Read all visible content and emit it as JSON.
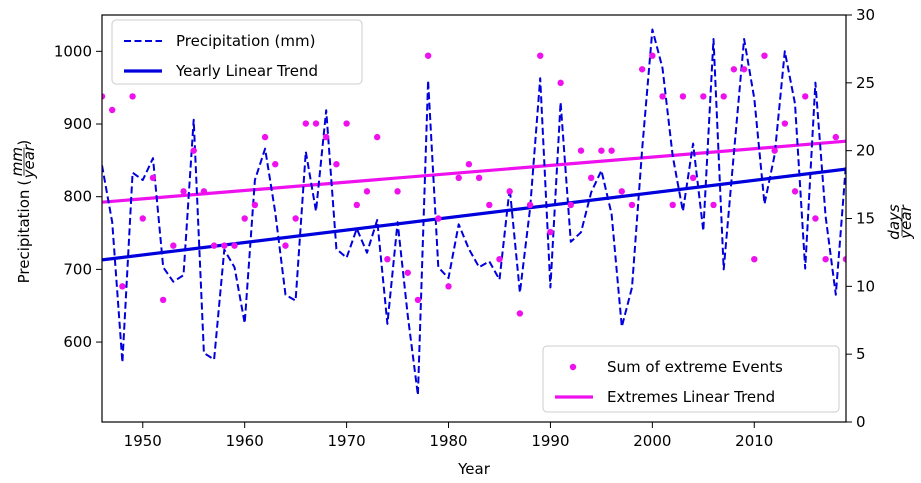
{
  "chart_data": {
    "type": "line",
    "xlabel": "Year",
    "ylabel_left": "Precipitation",
    "ylabel_left_unit": {
      "numerator": "mm",
      "denominator": "year"
    },
    "ylabel_right_unit": {
      "numerator": "days",
      "denominator": "year"
    },
    "xlim": [
      1946,
      2019
    ],
    "ylim_left": [
      490,
      1050
    ],
    "ylim_right": [
      0,
      30
    ],
    "xticks": [
      1950,
      1960,
      1970,
      1980,
      1990,
      2000,
      2010
    ],
    "yticks_left": [
      600,
      700,
      800,
      900,
      1000
    ],
    "yticks_right": [
      0,
      5,
      10,
      15,
      20,
      25,
      30
    ],
    "grid": false,
    "legends": [
      {
        "placement": "upper-left",
        "entries": [
          {
            "label": "Precipitation (mm)",
            "series": "precip"
          },
          {
            "label": "Yearly Linear Trend",
            "series": "precip_trend"
          }
        ]
      },
      {
        "placement": "lower-right",
        "entries": [
          {
            "label": "Sum of extreme Events",
            "series": "extremes"
          },
          {
            "label": "Extremes Linear Trend",
            "series": "extremes_trend"
          }
        ]
      }
    ],
    "colors": {
      "precip": "#0000dd",
      "precip_trend": "#0000dd",
      "extremes": "#ee11ee",
      "extremes_trend": "#ee11ee"
    },
    "series": [
      {
        "id": "precip",
        "name": "Precipitation (mm)",
        "axis": "left",
        "style": "dashed",
        "x": [
          1946,
          1947,
          1948,
          1949,
          1950,
          1951,
          1952,
          1953,
          1954,
          1955,
          1956,
          1957,
          1958,
          1959,
          1960,
          1961,
          1962,
          1963,
          1964,
          1965,
          1966,
          1967,
          1968,
          1969,
          1970,
          1971,
          1972,
          1973,
          1974,
          1975,
          1976,
          1977,
          1978,
          1979,
          1980,
          1981,
          1982,
          1983,
          1984,
          1985,
          1986,
          1987,
          1988,
          1989,
          1990,
          1991,
          1992,
          1993,
          1994,
          1995,
          1996,
          1997,
          1998,
          1999,
          2000,
          2001,
          2002,
          2003,
          2004,
          2005,
          2006,
          2007,
          2008,
          2009,
          2010,
          2011,
          2012,
          2013,
          2014,
          2015,
          2016,
          2017,
          2018,
          2019
        ],
        "y": [
          843,
          765,
          572,
          833,
          823,
          853,
          703,
          683,
          692,
          906,
          585,
          576,
          727,
          703,
          626,
          823,
          866,
          778,
          665,
          657,
          862,
          780,
          919,
          728,
          716,
          756,
          723,
          768,
          625,
          765,
          636,
          527,
          960,
          703,
          688,
          762,
          728,
          703,
          711,
          686,
          812,
          668,
          784,
          963,
          675,
          930,
          738,
          751,
          806,
          836,
          776,
          621,
          675,
          866,
          1030,
          977,
          856,
          780,
          873,
          753,
          1017,
          700,
          860,
          1017,
          935,
          790,
          858,
          1000,
          928,
          701,
          957,
          773,
          665,
          845
        ]
      },
      {
        "id": "precip_trend",
        "name": "Yearly Linear Trend",
        "axis": "left",
        "style": "solid",
        "x": [
          1946,
          2019
        ],
        "y": [
          713,
          838
        ]
      },
      {
        "id": "extremes",
        "name": "Sum of extreme Events",
        "axis": "right",
        "style": "points",
        "x": [
          1946,
          1947,
          1948,
          1949,
          1950,
          1951,
          1952,
          1953,
          1954,
          1955,
          1956,
          1957,
          1958,
          1959,
          1960,
          1961,
          1962,
          1963,
          1964,
          1965,
          1966,
          1967,
          1968,
          1969,
          1970,
          1971,
          1972,
          1973,
          1974,
          1975,
          1976,
          1977,
          1978,
          1979,
          1980,
          1981,
          1982,
          1983,
          1984,
          1985,
          1986,
          1987,
          1988,
          1989,
          1990,
          1991,
          1992,
          1993,
          1994,
          1995,
          1996,
          1997,
          1998,
          1999,
          2000,
          2001,
          2002,
          2003,
          2004,
          2005,
          2006,
          2007,
          2008,
          2009,
          2010,
          2011,
          2012,
          2013,
          2014,
          2015,
          2016,
          2017,
          2018,
          2019
        ],
        "y": [
          24,
          23,
          10,
          24,
          15,
          18,
          9,
          13,
          17,
          20,
          17,
          13,
          13,
          13,
          15,
          16,
          21,
          19,
          13,
          15,
          22,
          22,
          21,
          19,
          22,
          16,
          17,
          21,
          12,
          17,
          11,
          9,
          27,
          15,
          10,
          18,
          19,
          18,
          16,
          12,
          17,
          8,
          16,
          27,
          14,
          25,
          16,
          20,
          18,
          20,
          20,
          17,
          16,
          26,
          27,
          24,
          16,
          24,
          18,
          24,
          16,
          24,
          26,
          26,
          12,
          27,
          20,
          22,
          17,
          24,
          15,
          12,
          21,
          12
        ]
      },
      {
        "id": "extremes_trend",
        "name": "Extremes Linear Trend",
        "axis": "right",
        "style": "solid",
        "x": [
          1946,
          2019
        ],
        "y": [
          16.2,
          20.7
        ]
      }
    ]
  }
}
